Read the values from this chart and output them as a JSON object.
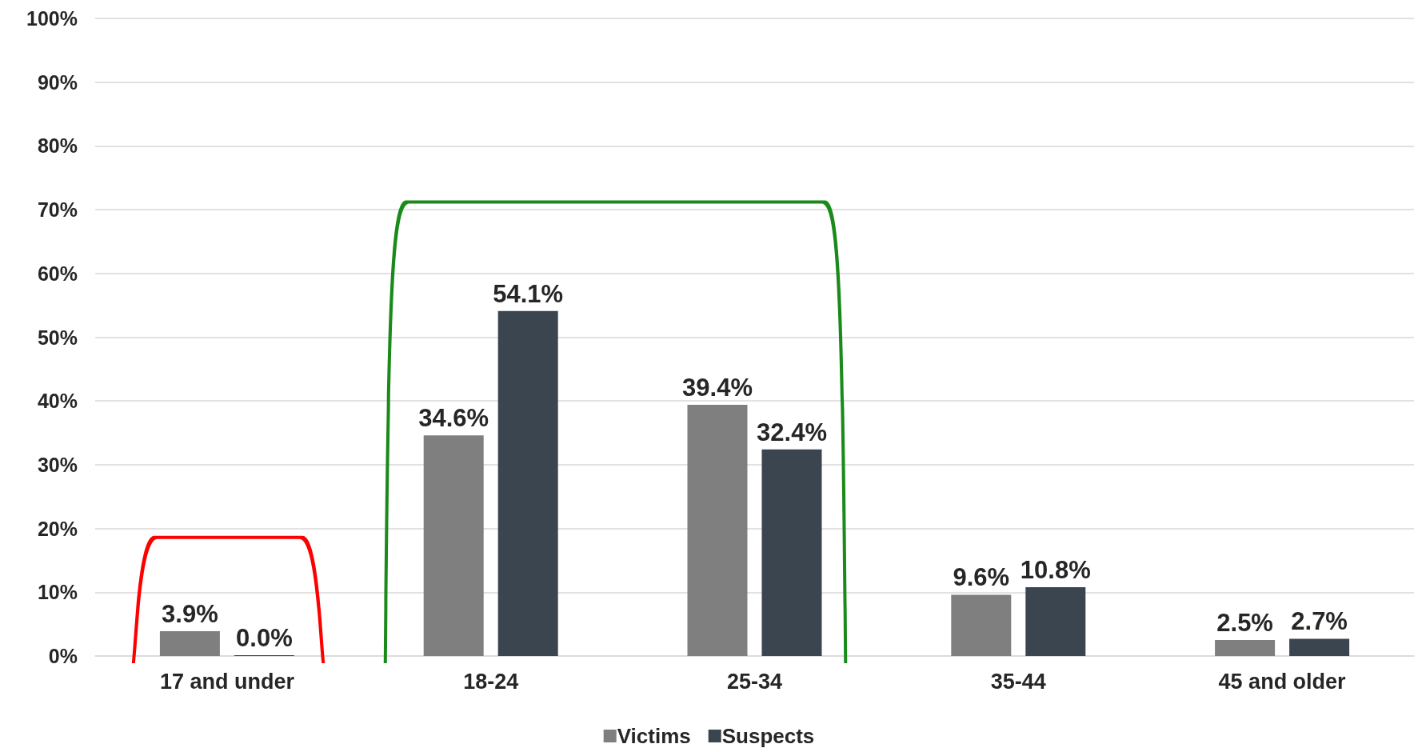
{
  "chart_data": {
    "type": "bar",
    "categories": [
      "17 and under",
      "18-24",
      "25-34",
      "35-44",
      "45 and older"
    ],
    "series": [
      {
        "name": "Victims",
        "color": "#7f7f7f",
        "values": [
          3.9,
          34.6,
          39.4,
          9.6,
          2.5
        ],
        "value_labels": [
          "3.9%",
          "34.6%",
          "39.4%",
          "9.6%",
          "2.5%"
        ]
      },
      {
        "name": "Suspects",
        "color": "#3b4550",
        "values": [
          0.0,
          54.1,
          32.4,
          10.8,
          2.7
        ],
        "value_labels": [
          "0.0%",
          "54.1%",
          "32.4%",
          "10.8%",
          "2.7%"
        ]
      }
    ],
    "ylim": [
      0,
      100
    ],
    "yticks": [
      {
        "value": 0,
        "label": "0%"
      },
      {
        "value": 10,
        "label": "10%"
      },
      {
        "value": 20,
        "label": "20%"
      },
      {
        "value": 30,
        "label": "30%"
      },
      {
        "value": 40,
        "label": "40%"
      },
      {
        "value": 50,
        "label": "50%"
      },
      {
        "value": 60,
        "label": "60%"
      },
      {
        "value": 70,
        "label": "70%"
      },
      {
        "value": 80,
        "label": "80%"
      },
      {
        "value": 90,
        "label": "90%"
      },
      {
        "value": 100,
        "label": "100%"
      }
    ],
    "grid": "y",
    "legend": "bottom"
  }
}
